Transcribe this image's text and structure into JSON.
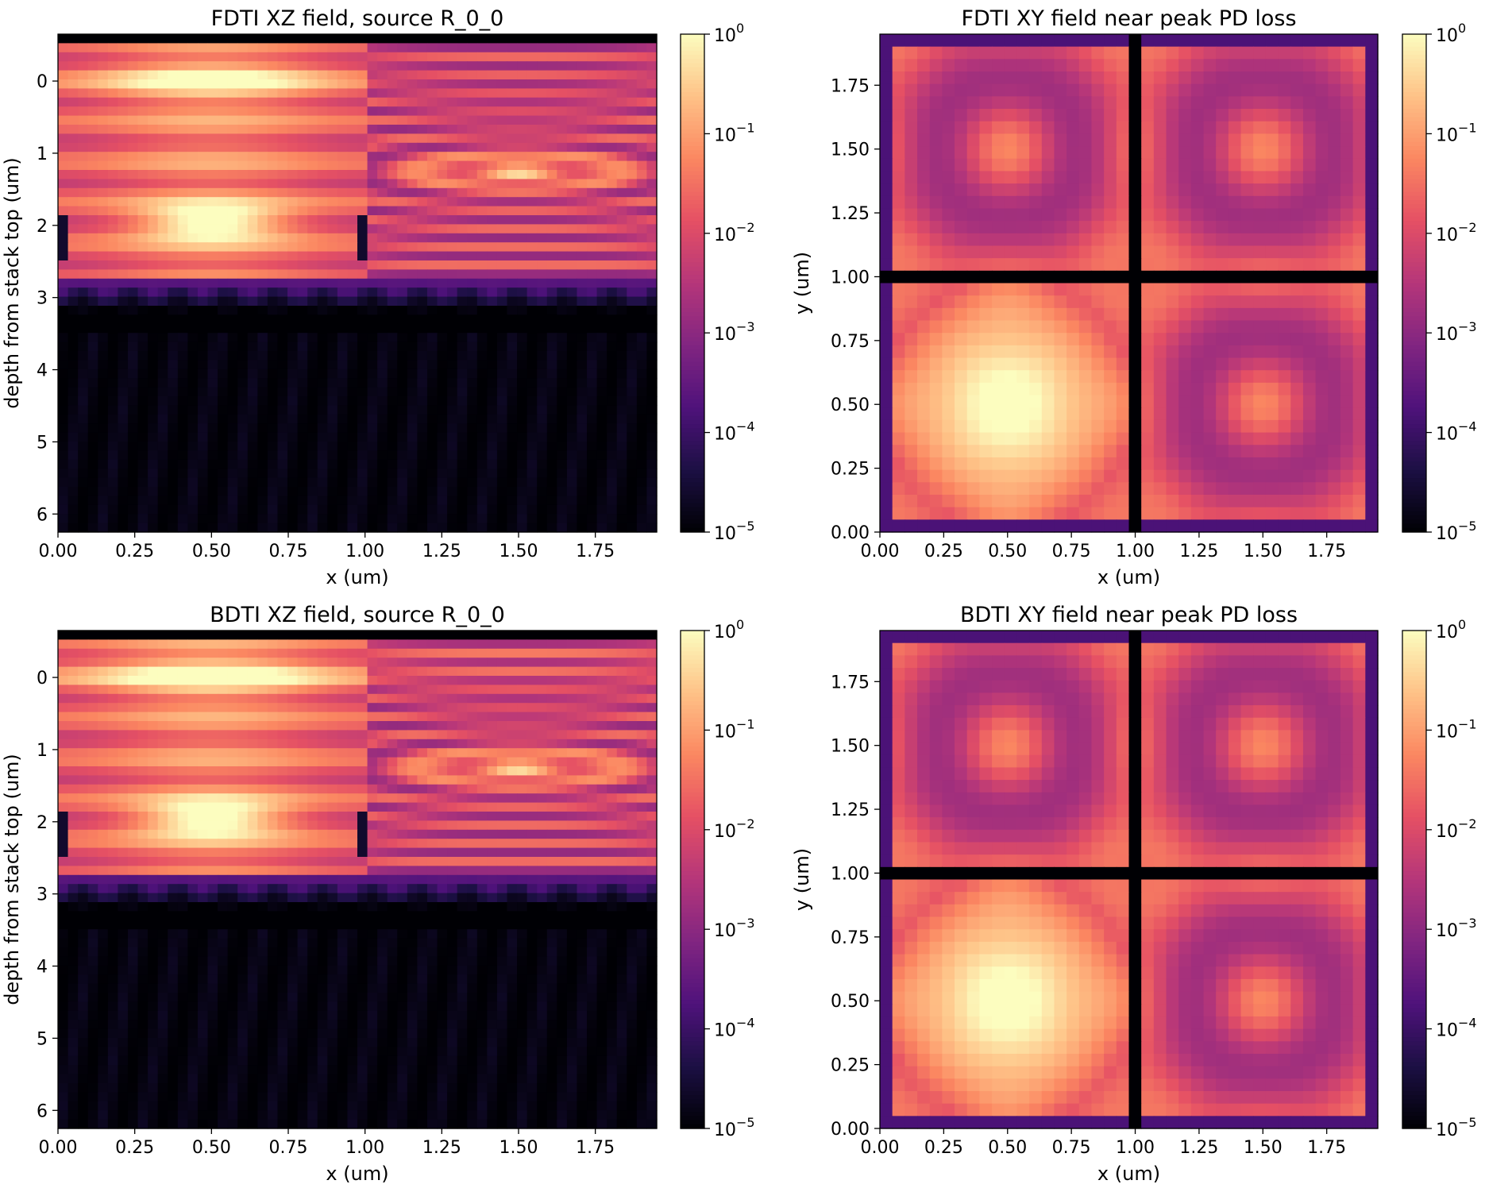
{
  "figure": {
    "colormap": "magma",
    "colormap_stops": [
      "#000004",
      "#1c1044",
      "#4f127b",
      "#812581",
      "#b5367a",
      "#e55064",
      "#fb8761",
      "#fec287",
      "#fcfdbf"
    ]
  },
  "chart_data": [
    {
      "type": "heatmap",
      "title": "FDTI XZ field, source R_0_0",
      "xlabel": "x (um)",
      "ylabel": "depth from stack top (um)",
      "xlim": [
        0,
        1.95
      ],
      "ylim": [
        6.25,
        -0.65
      ],
      "y_inverted": true,
      "xticks": [
        "0.00",
        "0.25",
        "0.50",
        "0.75",
        "1.00",
        "1.25",
        "1.50",
        "1.75"
      ],
      "yticks": [
        "0",
        "1",
        "2",
        "3",
        "4",
        "5",
        "6"
      ],
      "color_scale": "log",
      "clim": [
        1e-05,
        1
      ],
      "colorbar_ticks": [
        "0",
        "-1",
        "-2",
        "-3",
        "-4",
        "-5"
      ],
      "colorbar_base": "10",
      "field_features": {
        "peak_value": 1,
        "peak_location": [
          0.5,
          2.0
        ],
        "secondary_peak": [
          1.5,
          1.25
        ],
        "bright_bands_depth": [
          0.0,
          2.0
        ],
        "trench_walls_x": [
          0.0,
          1.0
        ],
        "trench_depth": [
          1.9,
          2.5
        ],
        "field_cutoff_depth": 2.7
      }
    },
    {
      "type": "heatmap",
      "title": "FDTI XY field near peak PD loss",
      "xlabel": "x (um)",
      "ylabel": "y (um)",
      "xlim": [
        0,
        1.95
      ],
      "ylim": [
        0,
        1.95
      ],
      "xticks": [
        "0.00",
        "0.25",
        "0.50",
        "0.75",
        "1.00",
        "1.25",
        "1.50",
        "1.75"
      ],
      "yticks": [
        "0.00",
        "0.25",
        "0.50",
        "0.75",
        "1.00",
        "1.25",
        "1.50",
        "1.75"
      ],
      "color_scale": "log",
      "clim": [
        1e-05,
        1
      ],
      "colorbar_ticks": [
        "0",
        "-1",
        "-2",
        "-3",
        "-4",
        "-5"
      ],
      "colorbar_base": "10",
      "field_features": {
        "peak_value": 1,
        "peak_location": [
          0.5,
          0.5
        ],
        "pixel_centers": [
          0.5,
          1.5
        ],
        "grid_walls": [
          0.0,
          1.0
        ]
      }
    },
    {
      "type": "heatmap",
      "title": "BDTI XZ field, source R_0_0",
      "xlabel": "x (um)",
      "ylabel": "depth from stack top (um)",
      "xlim": [
        0,
        1.95
      ],
      "ylim": [
        6.25,
        -0.65
      ],
      "y_inverted": true,
      "xticks": [
        "0.00",
        "0.25",
        "0.50",
        "0.75",
        "1.00",
        "1.25",
        "1.50",
        "1.75"
      ],
      "yticks": [
        "0",
        "1",
        "2",
        "3",
        "4",
        "5",
        "6"
      ],
      "color_scale": "log",
      "clim": [
        1e-05,
        1
      ],
      "colorbar_ticks": [
        "0",
        "-1",
        "-2",
        "-3",
        "-4",
        "-5"
      ],
      "colorbar_base": "10",
      "field_features": {
        "peak_value": 1,
        "peak_location": [
          0.5,
          1.95
        ],
        "secondary_peak": [
          1.5,
          1.25
        ],
        "bright_bands_depth": [
          -0.2,
          2.0
        ],
        "trench_walls_x": [
          0.0,
          1.0
        ],
        "trench_depth": [
          1.9,
          2.5
        ],
        "field_cutoff_depth": 2.7
      }
    },
    {
      "type": "heatmap",
      "title": "BDTI XY field near peak PD loss",
      "xlabel": "x (um)",
      "ylabel": "y (um)",
      "xlim": [
        0,
        1.95
      ],
      "ylim": [
        0,
        1.95
      ],
      "xticks": [
        "0.00",
        "0.25",
        "0.50",
        "0.75",
        "1.00",
        "1.25",
        "1.50",
        "1.75"
      ],
      "yticks": [
        "0.00",
        "0.25",
        "0.50",
        "0.75",
        "1.00",
        "1.25",
        "1.50",
        "1.75"
      ],
      "color_scale": "log",
      "clim": [
        1e-05,
        1
      ],
      "colorbar_ticks": [
        "0",
        "-1",
        "-2",
        "-3",
        "-4",
        "-5"
      ],
      "colorbar_base": "10",
      "field_features": {
        "peak_value": 1,
        "peak_location": [
          0.5,
          0.5
        ],
        "pixel_centers": [
          0.5,
          1.5
        ],
        "grid_walls": [
          0.0,
          1.0
        ]
      }
    }
  ]
}
